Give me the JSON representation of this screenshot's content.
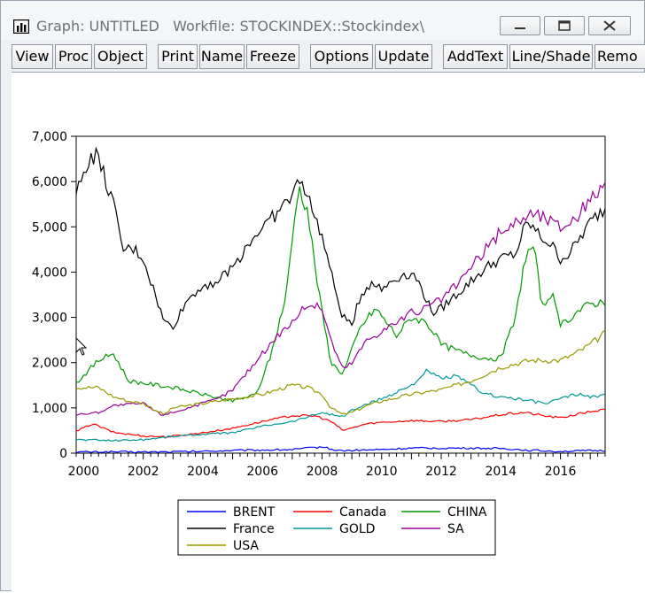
{
  "window": {
    "title": "Graph: UNTITLED   Workfile: STOCKINDEX::Stockindex\\"
  },
  "toolbar": {
    "buttons": [
      "View",
      "Proc",
      "Object",
      "Print",
      "Name",
      "Freeze",
      "Options",
      "Update",
      "AddText",
      "Line/Shade",
      "Remo"
    ]
  },
  "chart_data": {
    "type": "line",
    "title": "",
    "xlabel": "",
    "ylabel": "",
    "xlim": [
      1999.75,
      2017.5
    ],
    "ylim": [
      0,
      7000
    ],
    "yticks": [
      0,
      1000,
      2000,
      3000,
      4000,
      5000,
      6000,
      7000
    ],
    "ytick_labels": [
      "0",
      "1,000",
      "2,000",
      "3,000",
      "4,000",
      "5,000",
      "6,000",
      "7,000"
    ],
    "xticks": [
      2000,
      2002,
      2004,
      2006,
      2008,
      2010,
      2012,
      2014,
      2016
    ],
    "xtick_labels": [
      "2000",
      "2002",
      "2004",
      "2006",
      "2008",
      "2010",
      "2012",
      "2014",
      "2016"
    ],
    "grid": false,
    "legend_position": "bottom",
    "series": [
      {
        "name": "BRENT",
        "color": "#0000ff",
        "x": [
          1999.75,
          2001,
          2002,
          2003,
          2004,
          2005,
          2006,
          2007,
          2008,
          2008.5,
          2009,
          2010,
          2011,
          2012,
          2013,
          2014,
          2014.8,
          2015.5,
          2016,
          2017,
          2017.5
        ],
        "y": [
          25,
          30,
          25,
          30,
          40,
          60,
          70,
          80,
          140,
          60,
          60,
          80,
          110,
          110,
          110,
          105,
          70,
          50,
          40,
          55,
          55
        ]
      },
      {
        "name": "Canada",
        "color": "#ff0000",
        "x": [
          1999.75,
          2000.3,
          2001,
          2002,
          2002.8,
          2004,
          2005,
          2006,
          2007,
          2007.8,
          2008.3,
          2008.7,
          2009.5,
          2010,
          2011,
          2012,
          2013,
          2014,
          2014.8,
          2015.5,
          2016,
          2016.5,
          2017,
          2017.5
        ],
        "y": [
          480,
          650,
          460,
          380,
          360,
          450,
          550,
          700,
          830,
          820,
          700,
          500,
          650,
          680,
          720,
          700,
          740,
          850,
          900,
          820,
          780,
          850,
          920,
          960
        ]
      },
      {
        "name": "CHINA",
        "color": "#009900",
        "x": [
          1999.75,
          2000.5,
          2001,
          2001.5,
          2002,
          2003,
          2004,
          2005,
          2005.8,
          2006.3,
          2006.8,
          2007.2,
          2007.5,
          2007.9,
          2008.3,
          2008.7,
          2009.3,
          2009.8,
          2010.5,
          2011,
          2011.5,
          2012,
          2012.8,
          2013.5,
          2014,
          2014.5,
          2014.8,
          2015.1,
          2015.4,
          2015.7,
          2016,
          2016.5,
          2017,
          2017.5
        ],
        "y": [
          1550,
          2050,
          2200,
          1600,
          1550,
          1450,
          1300,
          1150,
          1300,
          2200,
          3500,
          5900,
          5400,
          3500,
          2000,
          1750,
          2800,
          3200,
          2600,
          3000,
          2900,
          2400,
          2200,
          2100,
          2100,
          3000,
          4300,
          4600,
          3200,
          3550,
          2800,
          3100,
          3300,
          3350
        ]
      },
      {
        "name": "France",
        "color": "#000000",
        "x": [
          1999.75,
          2000.1,
          2000.4,
          2000.6,
          2001,
          2001.3,
          2001.7,
          2002,
          2002.4,
          2002.7,
          2003,
          2003.5,
          2004,
          2004.5,
          2005,
          2005.5,
          2006,
          2006.5,
          2007,
          2007.3,
          2007.6,
          2008,
          2008.4,
          2008.7,
          2009,
          2009.3,
          2009.7,
          2010,
          2010.3,
          2010.6,
          2011,
          2011.3,
          2011.7,
          2012,
          2012.5,
          2013,
          2013.5,
          2014,
          2014.5,
          2014.8,
          2015,
          2015.3,
          2015.7,
          2016,
          2016.3,
          2016.7,
          2017,
          2017.3,
          2017.5
        ],
        "y": [
          5700,
          6400,
          6600,
          6300,
          5500,
          4500,
          4500,
          4300,
          3500,
          2900,
          2800,
          3400,
          3700,
          3800,
          4100,
          4600,
          5000,
          5300,
          5700,
          6100,
          5500,
          4800,
          3700,
          3000,
          2850,
          3500,
          3800,
          3600,
          3800,
          3900,
          4000,
          3700,
          3100,
          3200,
          3500,
          3800,
          4100,
          4300,
          4400,
          5000,
          5050,
          4800,
          4600,
          4300,
          4400,
          4800,
          5100,
          5300,
          5400
        ]
      },
      {
        "name": "GOLD",
        "color": "#009999",
        "x": [
          1999.75,
          2001,
          2002,
          2003,
          2004,
          2005,
          2006,
          2007,
          2008,
          2008.7,
          2009,
          2010,
          2011,
          2011.5,
          2012,
          2012.5,
          2013,
          2013.5,
          2014,
          2015,
          2015.5,
          2016,
          2016.5,
          2017,
          2017.5
        ],
        "y": [
          300,
          280,
          300,
          370,
          420,
          450,
          600,
          700,
          900,
          800,
          950,
          1200,
          1500,
          1800,
          1650,
          1700,
          1500,
          1300,
          1250,
          1150,
          1100,
          1200,
          1300,
          1250,
          1280
        ]
      },
      {
        "name": "SA",
        "color": "#990099",
        "x": [
          1999.75,
          2000.5,
          2001,
          2002,
          2002.6,
          2003,
          2004,
          2004.5,
          2005,
          2005.5,
          2006,
          2006.5,
          2007,
          2007.5,
          2008,
          2008.3,
          2008.7,
          2009,
          2009.5,
          2010,
          2010.5,
          2011,
          2011.5,
          2012,
          2012.5,
          2013,
          2013.5,
          2014,
          2014.5,
          2015,
          2015.5,
          2016,
          2016.5,
          2017,
          2017.5
        ],
        "y": [
          850,
          900,
          1050,
          1100,
          850,
          900,
          1100,
          1200,
          1400,
          1800,
          2200,
          2600,
          2900,
          3300,
          3200,
          2500,
          1850,
          2000,
          2500,
          2700,
          2900,
          3100,
          3200,
          3400,
          3700,
          4100,
          4500,
          4900,
          5100,
          5300,
          5200,
          5000,
          5200,
          5600,
          6000
        ]
      },
      {
        "name": "USA",
        "color": "#999900",
        "x": [
          1999.75,
          2000.5,
          2001,
          2001.5,
          2002,
          2002.7,
          2003,
          2004,
          2005,
          2006,
          2007,
          2007.5,
          2008,
          2008.3,
          2008.7,
          2009,
          2009.5,
          2010,
          2011,
          2012,
          2013,
          2014,
          2015,
          2016,
          2016.5,
          2017,
          2017.5
        ],
        "y": [
          1450,
          1450,
          1250,
          1150,
          1100,
          850,
          1000,
          1100,
          1200,
          1300,
          1500,
          1450,
          1300,
          1000,
          850,
          900,
          1050,
          1150,
          1300,
          1400,
          1600,
          1900,
          2050,
          2050,
          2200,
          2400,
          2650
        ]
      }
    ]
  }
}
